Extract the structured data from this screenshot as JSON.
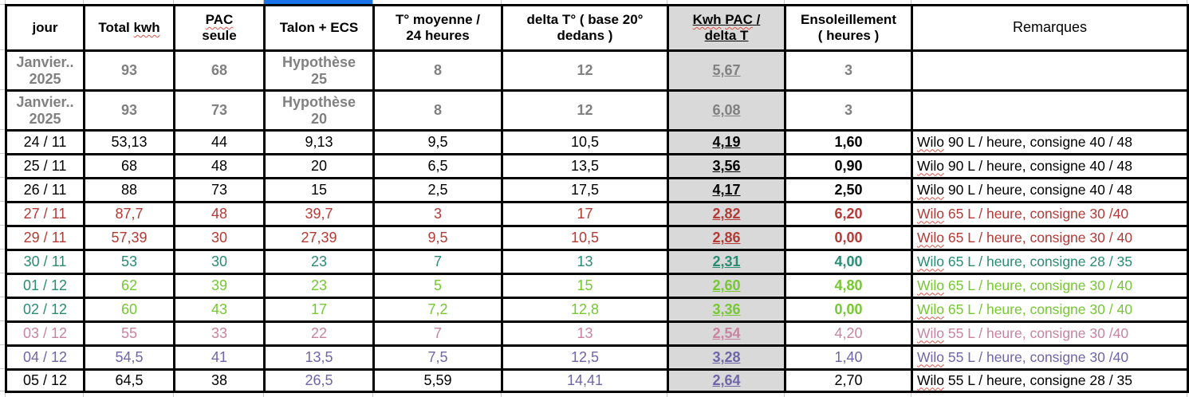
{
  "colors": {
    "gray": "#808080",
    "black": "#000000",
    "red": "#b43a36",
    "teal": "#2a8c72",
    "green": "#76c832",
    "pink": "#c884a0",
    "purple": "#6f66a8",
    "selection_blue": "#1a73e8",
    "highlight_bg": "#d9d9d9",
    "table_border": "#000000",
    "gridline": "#c8c8c8"
  },
  "table": {
    "headers": [
      {
        "id": "jour",
        "label": "jour"
      },
      {
        "id": "total-kwh",
        "label": "Total kwh",
        "squiggle": [
          "kwh"
        ]
      },
      {
        "id": "pac-seule",
        "label": "PAC\nseule",
        "squiggle": [
          "PAC"
        ]
      },
      {
        "id": "talon-ecs",
        "label": "Talon + ECS"
      },
      {
        "id": "t-moyenne",
        "label": "T° moyenne /\n24 heures"
      },
      {
        "id": "delta-t",
        "label": "delta T° ( base 20°\ndedans )"
      },
      {
        "id": "kwh-pac-delta-t",
        "label": "Kwh PAC /\ndelta T",
        "squiggle": [
          "Kwh",
          "PAC"
        ],
        "underline": true,
        "highlight": true
      },
      {
        "id": "ensoleillement",
        "label": "Ensoleillement\n( heures )"
      },
      {
        "id": "remarques",
        "label": "Remarques",
        "light": true
      }
    ],
    "rows": [
      {
        "jour": "Janvier..\n2025",
        "total": "93",
        "pac": "68",
        "talon": "Hypothèse\n25",
        "tmoy": "8",
        "delta": "12",
        "kwh": "5,67",
        "ens": "3",
        "rem": "",
        "color": "gray",
        "bold": true,
        "tall": true,
        "ens_bold": true
      },
      {
        "jour": "Janvier..\n2025",
        "total": "93",
        "pac": "73",
        "talon": "Hypothèse\n20",
        "tmoy": "8",
        "delta": "12",
        "kwh": "6,08",
        "ens": "3",
        "rem": "",
        "color": "gray",
        "bold": true,
        "tall": true,
        "ens_bold": true
      },
      {
        "jour": "24 / 11",
        "total": "53,13",
        "pac": "44",
        "talon": "9,13",
        "tmoy": "9,5",
        "delta": "10,5",
        "kwh": "4,19",
        "ens": "1,60",
        "rem": "Wilo 90 L / heure, consigne 40 / 48",
        "color": "black",
        "ens_bold": true
      },
      {
        "jour": "25 / 11",
        "total": "68",
        "pac": "48",
        "talon": "20",
        "tmoy": "6,5",
        "delta": "13,5",
        "kwh": "3,56",
        "ens": "0,90",
        "rem": "Wilo 90 L / heure, consigne 40 / 48",
        "color": "black",
        "ens_bold": true
      },
      {
        "jour": "26 / 11",
        "total": "88",
        "pac": "73",
        "talon": "15",
        "tmoy": "2,5",
        "delta": "17,5",
        "kwh": "4,17",
        "ens": "2,50",
        "rem": "Wilo 90 L / heure, consigne 40 / 48",
        "color": "black",
        "ens_bold": true
      },
      {
        "jour": "27 / 11",
        "total": "87,7",
        "pac": "48",
        "talon": "39,7",
        "tmoy": "3",
        "delta": "17",
        "kwh": "2,82",
        "ens": "6,20",
        "rem": "Wilo 65 L / heure, consigne 30 /40",
        "color": "red",
        "ens_bold": true
      },
      {
        "jour": "29 / 11",
        "total": "57,39",
        "pac": "30",
        "talon": "27,39",
        "tmoy": "9,5",
        "delta": "10,5",
        "kwh": "2,86",
        "ens": "0,00",
        "rem": "Wilo 65 L / heure, consigne 30 / 40",
        "color": "red",
        "ens_bold": true
      },
      {
        "jour": "30 / 11",
        "total": "53",
        "pac": "30",
        "talon": "23",
        "tmoy": "7",
        "delta": "13",
        "kwh": "2,31",
        "ens": "4,00",
        "rem": "Wilo 65 L / heure, consigne 28 / 35",
        "color": "teal",
        "ens_bold": true
      },
      {
        "jour": "01 / 12",
        "total": "62",
        "pac": "39",
        "talon": "23",
        "tmoy": "5",
        "delta": "15",
        "kwh": "2,60",
        "ens": "4,80",
        "rem": "Wilo 65 L / heure, consigne 30 / 40",
        "color": "green",
        "ens_bold": true,
        "cell_colors": {
          "jour": "teal"
        }
      },
      {
        "jour": "02 / 12",
        "total": "60",
        "pac": "43",
        "talon": "17",
        "tmoy": "7,2",
        "delta": "12,8",
        "kwh": "3,36",
        "ens": "0,00",
        "rem": "Wilo 65 L / heure, consigne 30 / 40",
        "color": "green",
        "ens_bold": true,
        "cell_colors": {
          "jour": "teal"
        }
      },
      {
        "jour": "03 / 12",
        "total": "55",
        "pac": "33",
        "talon": "22",
        "tmoy": "7",
        "delta": "13",
        "kwh": "2,54",
        "ens": "4,20",
        "rem": "Wilo 55 L / heure, consigne 30 /40",
        "color": "pink",
        "ens_bold": false
      },
      {
        "jour": "04 / 12",
        "total": "54,5",
        "pac": "41",
        "talon": "13,5",
        "tmoy": "7,5",
        "delta": "12,5",
        "kwh": "3,28",
        "ens": "1,40",
        "rem": "Wilo 55 L / heure, consigne 30 /40",
        "color": "purple",
        "ens_bold": false
      },
      {
        "jour": "05 / 12",
        "total": "64,5",
        "pac": "38",
        "talon": "26,5",
        "tmoy": "5,59",
        "delta": "14,41",
        "kwh": "2,64",
        "ens": "2,70",
        "rem": "Wilo 55 L / heure, consigne 28 / 35",
        "color": "black",
        "ens_bold": false,
        "last": true,
        "cell_colors": {
          "talon": "purple",
          "delta": "purple",
          "kwh": "purple"
        }
      }
    ],
    "squiggle_word_in_remarks": "Wilo"
  }
}
